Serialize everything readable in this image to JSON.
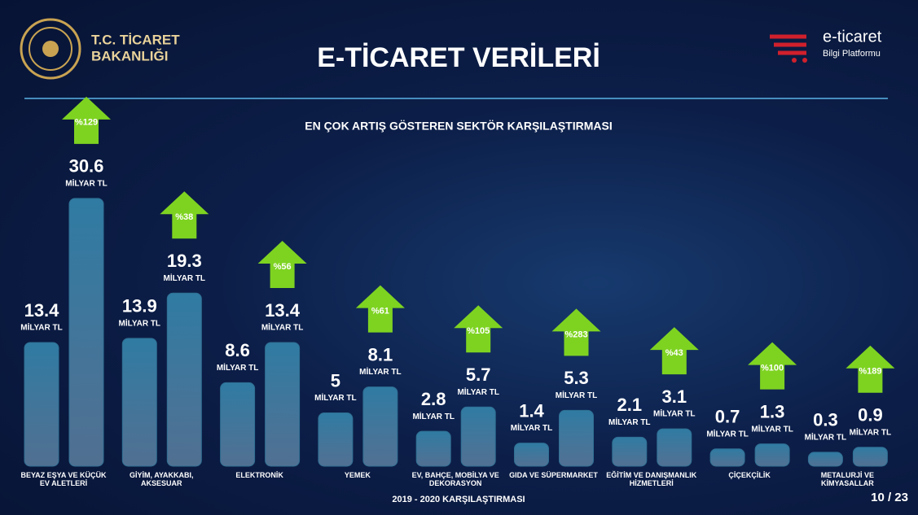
{
  "header": {
    "ministry_line1": "T.C. TİCARET",
    "ministry_line2": "BAKANLIĞI",
    "platform_name": "e-ticaret",
    "platform_subtitle": "Bilgi Platformu"
  },
  "chart_data": {
    "type": "bar",
    "title": "E-TİCARET VERİLERİ",
    "subtitle": "EN ÇOK ARTIŞ GÖSTEREN SEKTÖR KARŞILAŞTIRMASI",
    "categories": [
      "BEYAZ EŞYA VE KÜÇÜK EV ALETLERİ",
      "GİYİM, AYAKKABI, AKSESUAR",
      "ELEKTRONİK",
      "YEMEK",
      "EV, BAHÇE, MOBİLYA VE DEKORASYON",
      "GIDA VE SÜPERMARKET",
      "EĞİTİM VE DANIŞMANLIK HİZMETLERİ",
      "ÇİÇEKÇİLİK",
      "METALURJİ VE KİMYASALLAR"
    ],
    "unit": "MİLYAR TL",
    "series": [
      {
        "color": "#2f6f93",
        "values": [
          13.4,
          13.9,
          8.6,
          5,
          2.8,
          1.4,
          2.1,
          0.7,
          0.3
        ]
      },
      {
        "color": "#2f6f93",
        "values": [
          30.6,
          19.3,
          13.4,
          8.1,
          5.7,
          5.3,
          3.1,
          1.3,
          0.9
        ]
      }
    ],
    "growth": {
      "color": "#7ed321",
      "values": [
        129,
        38,
        56,
        61,
        105,
        283,
        43,
        100,
        189
      ],
      "value_labels": [
        "%129",
        "%38",
        "%56",
        "%61",
        "%105",
        "%283",
        "%43",
        "%100",
        "%189"
      ]
    },
    "footer": "2019 - 2020 KARŞILAŞTIRMASI",
    "page_number": "10 / 23"
  }
}
